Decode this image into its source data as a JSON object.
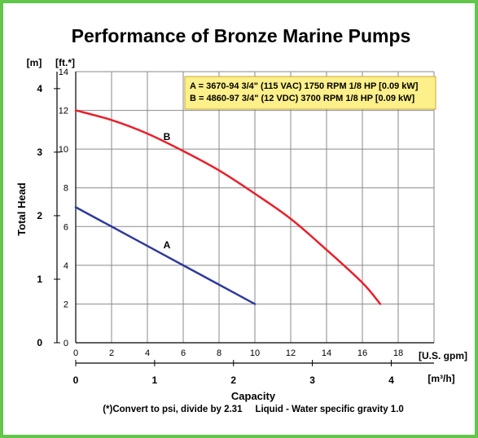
{
  "chart_data": {
    "type": "line",
    "title": "Performance of Bronze Marine Pumps",
    "ylabel": "Total Head",
    "xlabel": "Capacity",
    "y_unit_primary": "[ft.*]",
    "y_unit_secondary": "[m]",
    "x_unit_primary": "[U.S. gpm]",
    "x_unit_secondary": "[m³/h]",
    "xlim": [
      0,
      20
    ],
    "ylim": [
      0,
      14
    ],
    "x_ticks": [
      0,
      2,
      4,
      6,
      8,
      10,
      12,
      14,
      16,
      18
    ],
    "y_ticks": [
      0,
      2,
      4,
      6,
      8,
      10,
      12,
      14
    ],
    "x2_ticks": [
      0,
      1,
      2,
      3,
      4
    ],
    "y2_ticks": [
      0,
      1,
      2,
      3,
      4
    ],
    "grid": true,
    "series": [
      {
        "name": "A",
        "color": "#2e3a9b",
        "x": [
          0,
          2,
          4,
          6,
          8,
          10
        ],
        "y": [
          7.0,
          6.0,
          5.0,
          4.0,
          3.0,
          2.0
        ]
      },
      {
        "name": "B",
        "color": "#e8202b",
        "x": [
          0,
          2,
          4,
          6,
          8,
          10,
          12,
          14,
          16,
          17
        ],
        "y": [
          12.0,
          11.5,
          10.8,
          9.9,
          8.9,
          7.7,
          6.4,
          4.8,
          3.1,
          2.0
        ]
      }
    ],
    "legend": {
      "position": "top-right",
      "background": "#fdf08a",
      "lines": [
        "A = 3670-94 3/4\" (115 VAC) 1750 RPM 1/8 HP [0.09 kW]",
        "B = 4860-97 3/4\" (12 VDC) 3700 RPM 1/8 HP [0.09 kW]"
      ]
    },
    "footnote": "(*)Convert to psi, divide by 2.31     Liquid - Water specific gravity 1.0"
  },
  "colors": {
    "border": "#62c64a",
    "grid": "#8a8a8a",
    "legend_bg": "#fdf08a"
  }
}
